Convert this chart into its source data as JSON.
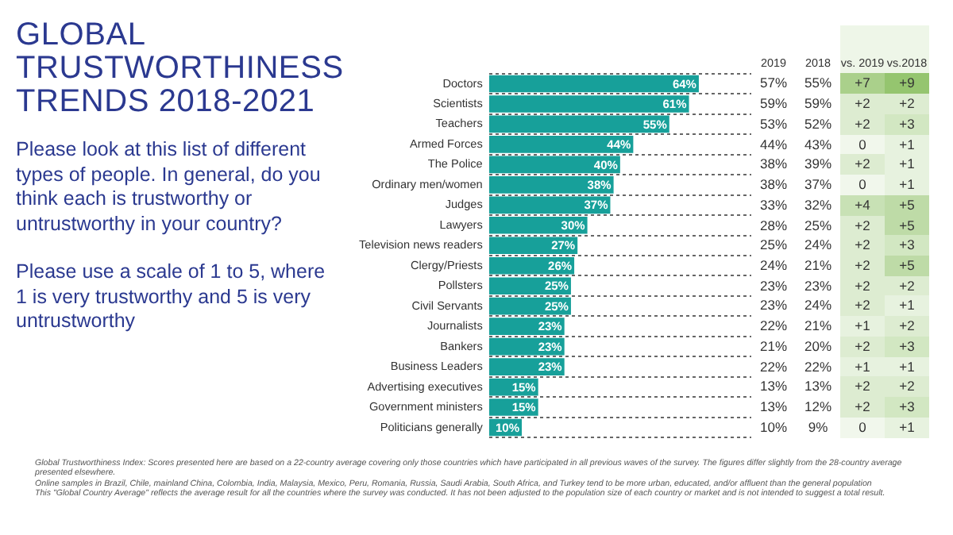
{
  "chart_data": [
    {
      "type": "other",
      "title": "GLOBAL TRUSTWORTHINESS TRENDS 2018-2021",
      "subtitle": "Please look at this list of different types of people. In general, do you think each is trustworthy or untrustworthy in your country?",
      "annotations": [
        "Please use a scale of 1 to 5, where 1 is very trustworthy and 5 is very untrustworthy",
        "Global Trustworthiness Index: Scores presented here are based on a 22-country average covering only those countries which have participated in all previous waves of the survey. The figures differ slightly from the 28-country average presented elsewhere.",
        "Online samples in Brazil, Chile, mainland China, Colombia, India, Malaysia, Mexico, Peru, Romania, Russia, Saudi Arabia, South Africa, and Turkey tend to be more urban, educated, and/or affluent than the general population",
        "This \"Global Country Average\" reflects the average result for all the countries where the survey was conducted. It has not been adjusted to the population size of each country or market and is not intended to suggest a total result."
      ]
    },
    {
      "type": "bar",
      "orientation": "horizontal",
      "categories": [
        "Doctors",
        "Scientists",
        "Teachers",
        "Armed Forces",
        "The Police",
        "Ordinary men/women",
        "Judges",
        "Lawyers",
        "Television news readers",
        "Clergy/Priests",
        "Pollsters",
        "Civil Servants",
        "Journalists",
        "Bankers",
        "Business Leaders",
        "Advertising executives",
        "Government ministers",
        "Politicians generally"
      ],
      "values": [
        64,
        61,
        55,
        44,
        40,
        38,
        37,
        30,
        27,
        26,
        25,
        25,
        23,
        23,
        23,
        15,
        15,
        10
      ],
      "value_labels": [
        "64%",
        "61%",
        "55%",
        "44%",
        "40%",
        "38%",
        "37%",
        "30%",
        "27%",
        "26%",
        "25%",
        "25%",
        "23%",
        "23%",
        "23%",
        "15%",
        "15%",
        "10%"
      ],
      "color": "#17a09a",
      "grid": "y",
      "legend": false
    },
    {
      "type": "heatmap",
      "categories": [
        "2019",
        "2018"
      ],
      "tick_labels": "x",
      "y_categories": [
        null,
        null,
        null,
        null,
        null,
        null,
        null,
        null,
        null,
        null,
        null,
        null,
        null,
        null,
        null,
        null,
        null,
        null
      ],
      "cells": [
        [
          57,
          55
        ],
        [
          59,
          59
        ],
        [
          53,
          52
        ],
        [
          44,
          43
        ],
        [
          38,
          39
        ],
        [
          38,
          37
        ],
        [
          33,
          32
        ],
        [
          28,
          25
        ],
        [
          25,
          24
        ],
        [
          24,
          21
        ],
        [
          23,
          23
        ],
        [
          23,
          24
        ],
        [
          22,
          21
        ],
        [
          21,
          20
        ],
        [
          22,
          22
        ],
        [
          13,
          13
        ],
        [
          13,
          12
        ],
        [
          10,
          9
        ]
      ],
      "cell_labels": [
        [
          "57%",
          "55%"
        ],
        [
          "59%",
          "59%"
        ],
        [
          "53%",
          "52%"
        ],
        [
          "44%",
          "43%"
        ],
        [
          "38%",
          "39%"
        ],
        [
          "38%",
          "37%"
        ],
        [
          "33%",
          "32%"
        ],
        [
          "28%",
          "25%"
        ],
        [
          "25%",
          "24%"
        ],
        [
          "24%",
          "21%"
        ],
        [
          "23%",
          "23%"
        ],
        [
          "23%",
          "24%"
        ],
        [
          "22%",
          "21%"
        ],
        [
          "21%",
          "20%"
        ],
        [
          "22%",
          "22%"
        ],
        [
          "13%",
          "13%"
        ],
        [
          "13%",
          "12%"
        ],
        [
          "10%",
          "9%"
        ]
      ]
    },
    {
      "type": "heatmap",
      "categories": [
        "vs. 2019",
        "vs.2018"
      ],
      "color": "#8cc063",
      "tick_labels": "x",
      "y_categories": [
        null,
        null,
        null,
        null,
        null,
        null,
        null,
        null,
        null,
        null,
        null,
        null,
        null,
        null,
        null,
        null,
        null,
        null
      ],
      "cells": [
        [
          7,
          9
        ],
        [
          2,
          2
        ],
        [
          2,
          3
        ],
        [
          0,
          1
        ],
        [
          2,
          1
        ],
        [
          0,
          1
        ],
        [
          4,
          5
        ],
        [
          2,
          5
        ],
        [
          2,
          3
        ],
        [
          2,
          5
        ],
        [
          2,
          2
        ],
        [
          2,
          1
        ],
        [
          1,
          2
        ],
        [
          2,
          3
        ],
        [
          1,
          1
        ],
        [
          2,
          2
        ],
        [
          2,
          3
        ],
        [
          0,
          1
        ]
      ],
      "cell_labels": [
        [
          "+7",
          "+9"
        ],
        [
          "+2",
          "+2"
        ],
        [
          "+2",
          "+3"
        ],
        [
          "0",
          "+1"
        ],
        [
          "+2",
          "+1"
        ],
        [
          "0",
          "+1"
        ],
        [
          "+4",
          "+5"
        ],
        [
          "+2",
          "+5"
        ],
        [
          "+2",
          "+3"
        ],
        [
          "+2",
          "+5"
        ],
        [
          "+2",
          "+2"
        ],
        [
          "+2",
          "+1"
        ],
        [
          "+1",
          "+2"
        ],
        [
          "+2",
          "+3"
        ],
        [
          "+1",
          "+1"
        ],
        [
          "+2",
          "+2"
        ],
        [
          "+2",
          "+3"
        ],
        [
          "0",
          "+1"
        ]
      ]
    }
  ]
}
